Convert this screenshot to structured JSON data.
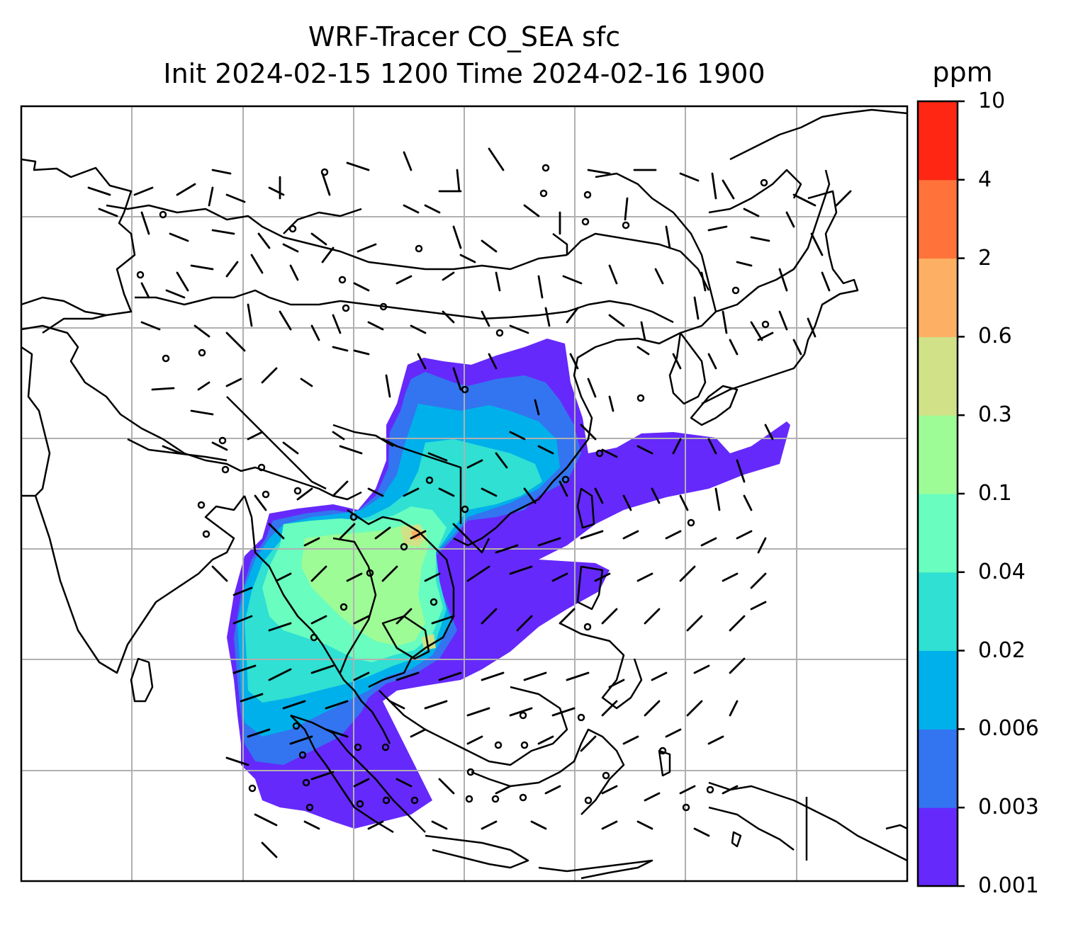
{
  "figure": {
    "title_line1": "WRF-Tracer CO_SEA sfc",
    "title_line2": "Init 2024-02-15 1200 Time 2024-02-16 1900"
  },
  "colorbar": {
    "unit": "ppm",
    "ticks": [
      "10",
      "4",
      "2",
      "0.6",
      "0.3",
      "0.1",
      "0.04",
      "0.02",
      "0.006",
      "0.003",
      "0.001"
    ],
    "colors": [
      "#6529fb",
      "#3374f0",
      "#00b0ea",
      "#2fe0d3",
      "#69fdbf",
      "#9efc96",
      "#d1e188",
      "#fdb063",
      "#ff733a",
      "#ff2713"
    ]
  },
  "map": {
    "background": "#ffffff",
    "gridline_color": "#b0b0b0",
    "coastline_color": "#000000"
  }
}
